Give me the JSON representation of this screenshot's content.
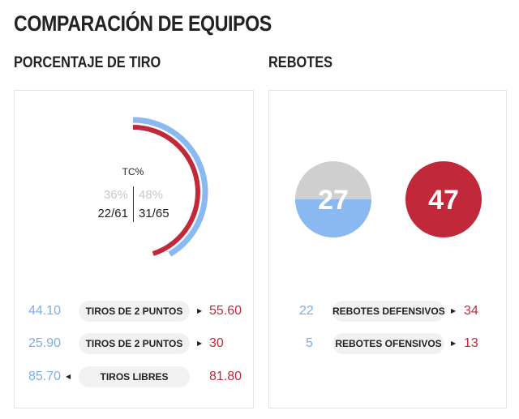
{
  "page_title": "COMPARACIÓN DE EQUIPOS",
  "sections": {
    "shooting_title": "PORCENTAJE DE TIRO",
    "rebounds_title": "REBOTES"
  },
  "colors": {
    "home": "#8ab8f0",
    "away": "#c1293a",
    "neutral": "#cfcfcf"
  },
  "shooting": {
    "gauge_label": "TC%",
    "home_pct": "36%",
    "away_pct": "48%",
    "home_made": "22/61",
    "away_made": "31/65",
    "home_pct_value": 36,
    "away_pct_value": 48,
    "rows": [
      {
        "home": "44.10",
        "label": "TIROS DE 2 PUNTOS",
        "away": "55.60",
        "arrow": "right"
      },
      {
        "home": "25.90",
        "label": "TIROS DE 2 PUNTOS",
        "away": "30",
        "arrow": "right"
      },
      {
        "home": "85.70",
        "label": "TIROS LIBRES",
        "away": "81.80",
        "arrow": "left"
      }
    ]
  },
  "rebounds": {
    "home_total": "27",
    "away_total": "47",
    "rows": [
      {
        "home": "22",
        "label": "REBOTES DEFENSIVOS",
        "away": "34",
        "arrow": "right"
      },
      {
        "home": "5",
        "label": "REBOTES OFENSIVOS",
        "away": "13",
        "arrow": "right"
      }
    ]
  }
}
